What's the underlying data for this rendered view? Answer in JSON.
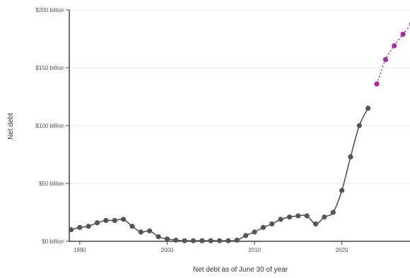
{
  "chart_data": {
    "type": "line",
    "title": "",
    "xlabel": "Net debt as of June 30 of year",
    "ylabel": "Net debt",
    "xlim": [
      1988.8,
      2027.8
    ],
    "ylim": [
      0,
      200
    ],
    "x_ticks": [
      1990,
      2000,
      2010,
      2020
    ],
    "y_ticks": [
      {
        "value": 0,
        "label": "$0 billion"
      },
      {
        "value": 50,
        "label": "$50 billion"
      },
      {
        "value": 100,
        "label": "$100 billion"
      },
      {
        "value": 150,
        "label": "$150 billion"
      },
      {
        "value": 200,
        "label": "$200 billion"
      }
    ],
    "grid": "horizontal",
    "legend": "none",
    "series": [
      {
        "style": "solid",
        "color": "#555555",
        "points": [
          [
            1989,
            10
          ],
          [
            1990,
            12
          ],
          [
            1991,
            13
          ],
          [
            1992,
            16
          ],
          [
            1993,
            18
          ],
          [
            1994,
            18
          ],
          [
            1995,
            19
          ],
          [
            1996,
            13
          ],
          [
            1997,
            8
          ],
          [
            1998,
            9
          ],
          [
            1999,
            4
          ],
          [
            2000,
            2
          ],
          [
            2001,
            1
          ],
          [
            2002,
            0.5
          ],
          [
            2003,
            0.5
          ],
          [
            2004,
            0.5
          ],
          [
            2005,
            0.5
          ],
          [
            2006,
            0.5
          ],
          [
            2007,
            0.5
          ],
          [
            2008,
            1
          ],
          [
            2009,
            5
          ],
          [
            2010,
            8
          ],
          [
            2011,
            12
          ],
          [
            2012,
            15
          ],
          [
            2013,
            19
          ],
          [
            2014,
            21
          ],
          [
            2015,
            22
          ],
          [
            2016,
            22
          ],
          [
            2017,
            15
          ],
          [
            2018,
            21
          ],
          [
            2019,
            25
          ],
          [
            2020,
            44
          ],
          [
            2021,
            73
          ],
          [
            2022,
            100
          ],
          [
            2023,
            115
          ]
        ]
      },
      {
        "style": "dotted",
        "color": "#a32ea3",
        "points": [
          [
            2024,
            136
          ],
          [
            2025,
            157
          ],
          [
            2026,
            169
          ],
          [
            2027,
            179
          ],
          [
            2028,
            188
          ]
        ]
      }
    ]
  }
}
